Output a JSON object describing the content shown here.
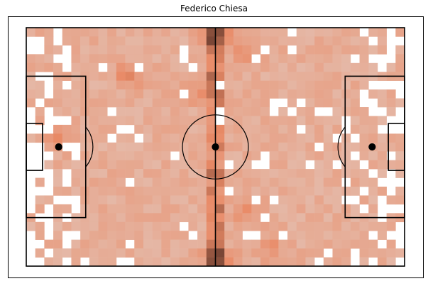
{
  "chart_data": {
    "type": "heatmap",
    "title": "Federico Chiesa",
    "xlabel": "",
    "ylabel": "",
    "grid": false,
    "legend": "none",
    "pitch": {
      "length": 105,
      "width": 68
    },
    "bins": {
      "x": 42,
      "y": 27
    },
    "colors": {
      "line": "#000000",
      "frame": "#000000",
      "low": "#e4c3b6",
      "mid": "#e98a66",
      "high": "#7a4636"
    },
    "density_description_points": {
      "hotspots": [
        {
          "x": 53,
          "y": 66,
          "value": 0.95
        },
        {
          "x": 53,
          "y": 2,
          "value": 0.95
        },
        {
          "x": 28,
          "y": 54,
          "value": 0.55
        },
        {
          "x": 61,
          "y": 60,
          "value": 0.5
        },
        {
          "x": 61,
          "y": 16,
          "value": 0.5
        },
        {
          "x": 9,
          "y": 37,
          "value": 0.55
        },
        {
          "x": 48,
          "y": 50,
          "value": 0.5
        },
        {
          "x": 68,
          "y": 5,
          "value": 0.45
        }
      ]
    }
  }
}
